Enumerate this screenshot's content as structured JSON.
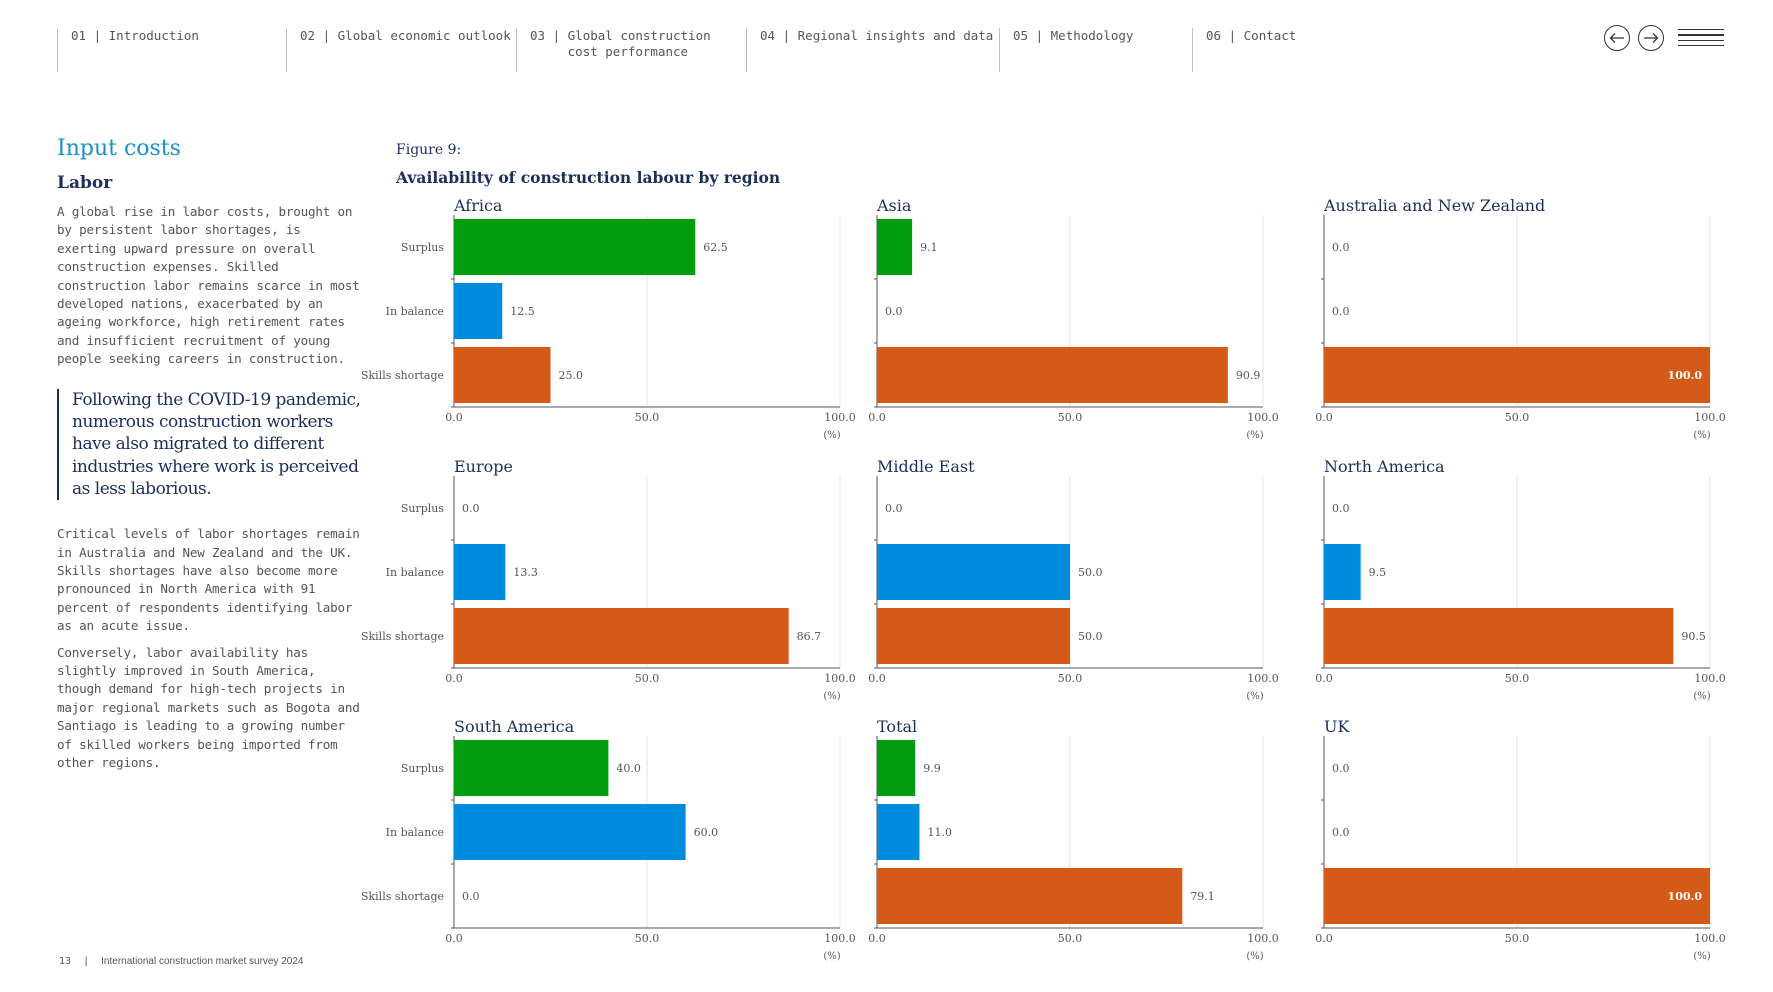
{
  "nav": {
    "items": [
      {
        "num": "01 |",
        "label": "Introduction"
      },
      {
        "num": "02 |",
        "label": "Global economic outlook"
      },
      {
        "num": "03 |",
        "label": "Global construction cost performance"
      },
      {
        "num": "04 |",
        "label": "Regional insights and data"
      },
      {
        "num": "05 |",
        "label": "Methodology"
      },
      {
        "num": "06 |",
        "label": "Contact"
      }
    ]
  },
  "left": {
    "section_title": "Input costs",
    "subsection_title": "Labor",
    "paragraph1": "A global rise in labor costs, brought on by persistent labor shortages, is exerting upward pressure on overall construction expenses. Skilled construction labor remains scarce in most developed nations, exacerbated by an ageing workforce, high retirement rates and insufficient recruitment of young people seeking careers in construction.",
    "quote": "Following the COVID-19 pandemic, numerous construction workers have also migrated to different industries where work is perceived as less laborious.",
    "paragraph2": "Critical levels of labor shortages remain in Australia and New Zealand and the UK. Skills shortages have also become more pronounced in North America with 91 percent of respondents identifying labor as an acute issue.",
    "paragraph3": "Conversely, labor availability has slightly improved in South America, though demand for high-tech projects in major regional markets such as Bogota and Santiago is leading to a growing number of skilled workers being imported from other regions."
  },
  "footer": {
    "page": "13",
    "title": "International construction market survey 2024"
  },
  "figure": {
    "label": "Figure 9:",
    "title": "Availability of construction labour by region"
  },
  "colors": {
    "surplus": "#009e0e",
    "balance": "#008cdc",
    "shortage": "#d35b17",
    "navy": "#1b2f5a",
    "accent": "#1a8fc9"
  },
  "chart_data": [
    {
      "type": "bar",
      "title": "Africa",
      "categories": [
        "Surplus",
        "In balance",
        "Skills shortage"
      ],
      "values": [
        62.5,
        12.5,
        25.0
      ],
      "xlim": [
        0,
        100
      ],
      "xticks": [
        "0.0",
        "50.0",
        "100.0"
      ],
      "xlabel": "(%)"
    },
    {
      "type": "bar",
      "title": "Asia",
      "categories": [
        "Surplus",
        "In balance",
        "Skills shortage"
      ],
      "values": [
        9.1,
        0.0,
        90.9
      ],
      "xlim": [
        0,
        100
      ],
      "xticks": [
        "0.0",
        "50.0",
        "100.0"
      ],
      "xlabel": "(%)"
    },
    {
      "type": "bar",
      "title": "Australia and New Zealand",
      "categories": [
        "Surplus",
        "In balance",
        "Skills shortage"
      ],
      "values": [
        0.0,
        0.0,
        100.0
      ],
      "xlim": [
        0,
        100
      ],
      "xticks": [
        "0.0",
        "50.0",
        "100.0"
      ],
      "xlabel": "(%)"
    },
    {
      "type": "bar",
      "title": "Europe",
      "categories": [
        "Surplus",
        "In balance",
        "Skills shortage"
      ],
      "values": [
        0.0,
        13.3,
        86.7
      ],
      "xlim": [
        0,
        100
      ],
      "xticks": [
        "0.0",
        "50.0",
        "100.0"
      ],
      "xlabel": "(%)"
    },
    {
      "type": "bar",
      "title": "Middle East",
      "categories": [
        "Surplus",
        "In balance",
        "Skills shortage"
      ],
      "values": [
        0.0,
        50.0,
        50.0
      ],
      "xlim": [
        0,
        100
      ],
      "xticks": [
        "0.0",
        "50.0",
        "100.0"
      ],
      "xlabel": "(%)"
    },
    {
      "type": "bar",
      "title": "North America",
      "categories": [
        "Surplus",
        "In balance",
        "Skills shortage"
      ],
      "values": [
        0.0,
        9.5,
        90.5
      ],
      "xlim": [
        0,
        100
      ],
      "xticks": [
        "0.0",
        "50.0",
        "100.0"
      ],
      "xlabel": "(%)"
    },
    {
      "type": "bar",
      "title": "South America",
      "categories": [
        "Surplus",
        "In balance",
        "Skills shortage"
      ],
      "values": [
        40.0,
        60.0,
        0.0
      ],
      "xlim": [
        0,
        100
      ],
      "xticks": [
        "0.0",
        "50.0",
        "100.0"
      ],
      "xlabel": "(%)"
    },
    {
      "type": "bar",
      "title": "Total",
      "categories": [
        "Surplus",
        "In balance",
        "Skills shortage"
      ],
      "values": [
        9.9,
        11.0,
        79.1
      ],
      "xlim": [
        0,
        100
      ],
      "xticks": [
        "0.0",
        "50.0",
        "100.0"
      ],
      "xlabel": "(%)"
    },
    {
      "type": "bar",
      "title": "UK",
      "categories": [
        "Surplus",
        "In balance",
        "Skills shortage"
      ],
      "values": [
        0.0,
        0.0,
        100.0
      ],
      "xlim": [
        0,
        100
      ],
      "xticks": [
        "0.0",
        "50.0",
        "100.0"
      ],
      "xlabel": "(%)"
    }
  ]
}
